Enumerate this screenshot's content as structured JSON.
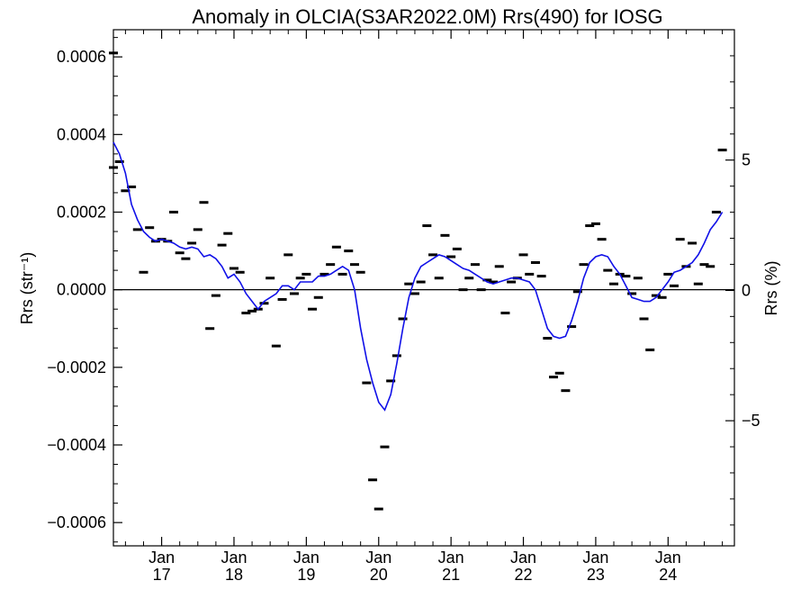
{
  "chart_data": {
    "type": "scatter",
    "title": "Anomaly in OLCIA(S3AR2022.0M) Rrs(490) for IOSG",
    "ylabel": "Rrs (str⁻¹)",
    "y2label": "Rrs (%)",
    "xlim": [
      "2016-05",
      "2024-12"
    ],
    "ylim": [
      -0.00066,
      0.00067
    ],
    "y2lim": [
      -9.8,
      10.0
    ],
    "grid": false,
    "zero_line": true,
    "x_ticks": [
      {
        "label": "Jan",
        "year": "17",
        "date": "2017-01"
      },
      {
        "label": "Jan",
        "year": "18",
        "date": "2018-01"
      },
      {
        "label": "Jan",
        "year": "19",
        "date": "2019-01"
      },
      {
        "label": "Jan",
        "year": "20",
        "date": "2020-01"
      },
      {
        "label": "Jan",
        "year": "21",
        "date": "2021-01"
      },
      {
        "label": "Jan",
        "year": "22",
        "date": "2022-01"
      },
      {
        "label": "Jan",
        "year": "23",
        "date": "2023-01"
      },
      {
        "label": "Jan",
        "year": "24",
        "date": "2024-01"
      }
    ],
    "y_ticks": [
      {
        "label": "0.0006",
        "value": 0.0006
      },
      {
        "label": "0.0004",
        "value": 0.0004
      },
      {
        "label": "0.0002",
        "value": 0.0002
      },
      {
        "label": "0.0000",
        "value": 0.0
      },
      {
        "label": "−0.0002",
        "value": -0.0002
      },
      {
        "label": "−0.0004",
        "value": -0.0004
      },
      {
        "label": "−0.0006",
        "value": -0.0006
      }
    ],
    "y2_ticks": [
      {
        "label": "5",
        "value": 5
      },
      {
        "label": "0",
        "value": 0
      },
      {
        "label": "−5",
        "value": -5
      }
    ],
    "series": [
      {
        "marker": "dash",
        "color": "#000000",
        "points": [
          [
            "2016-05",
            0.00061
          ],
          [
            "2016-05",
            0.000315
          ],
          [
            "2016-06",
            0.00033
          ],
          [
            "2016-07",
            0.000255
          ],
          [
            "2016-08",
            0.000265
          ],
          [
            "2016-09",
            0.000155
          ],
          [
            "2016-10",
            4.5e-05
          ],
          [
            "2016-11",
            0.00016
          ],
          [
            "2016-12",
            0.000125
          ],
          [
            "2017-01",
            0.00013
          ],
          [
            "2017-02",
            0.000125
          ],
          [
            "2017-03",
            0.0002
          ],
          [
            "2017-04",
            9.5e-05
          ],
          [
            "2017-05",
            8e-05
          ],
          [
            "2017-06",
            0.00012
          ],
          [
            "2017-07",
            0.000155
          ],
          [
            "2017-08",
            0.000225
          ],
          [
            "2017-09",
            -0.0001
          ],
          [
            "2017-10",
            -1.5e-05
          ],
          [
            "2017-11",
            0.000115
          ],
          [
            "2017-12",
            0.000145
          ],
          [
            "2018-01",
            5.5e-05
          ],
          [
            "2018-02",
            4.5e-05
          ],
          [
            "2018-03",
            -6e-05
          ],
          [
            "2018-04",
            -5.5e-05
          ],
          [
            "2018-05",
            -5e-05
          ],
          [
            "2018-06",
            -3.5e-05
          ],
          [
            "2018-07",
            3e-05
          ],
          [
            "2018-08",
            -0.000145
          ],
          [
            "2018-09",
            -2.5e-05
          ],
          [
            "2018-10",
            9e-05
          ],
          [
            "2018-11",
            -1e-05
          ],
          [
            "2018-12",
            3e-05
          ],
          [
            "2019-01",
            4e-05
          ],
          [
            "2019-02",
            -5e-05
          ],
          [
            "2019-03",
            -2e-05
          ],
          [
            "2019-04",
            4e-05
          ],
          [
            "2019-05",
            6.5e-05
          ],
          [
            "2019-06",
            0.00011
          ],
          [
            "2019-07",
            4e-05
          ],
          [
            "2019-08",
            0.0001
          ],
          [
            "2019-09",
            6.5e-05
          ],
          [
            "2019-10",
            4.5e-05
          ],
          [
            "2019-11",
            -0.00024
          ],
          [
            "2019-12",
            -0.00049
          ],
          [
            "2020-01",
            -0.000565
          ],
          [
            "2020-02",
            -0.000405
          ],
          [
            "2020-03",
            -0.000235
          ],
          [
            "2020-04",
            -0.00017
          ],
          [
            "2020-05",
            -7.5e-05
          ],
          [
            "2020-06",
            1.5e-05
          ],
          [
            "2020-07",
            -1e-05
          ],
          [
            "2020-08",
            2e-05
          ],
          [
            "2020-09",
            0.000165
          ],
          [
            "2020-10",
            9e-05
          ],
          [
            "2020-11",
            3e-05
          ],
          [
            "2020-12",
            0.00014
          ],
          [
            "2021-01",
            8.5e-05
          ],
          [
            "2021-02",
            0.000105
          ],
          [
            "2021-03",
            0.0
          ],
          [
            "2021-04",
            3e-05
          ],
          [
            "2021-05",
            6.5e-05
          ],
          [
            "2021-06",
            0.0
          ],
          [
            "2021-07",
            2.5e-05
          ],
          [
            "2021-08",
            2e-05
          ],
          [
            "2021-09",
            6e-05
          ],
          [
            "2021-10",
            -6e-05
          ],
          [
            "2021-11",
            2e-05
          ],
          [
            "2021-12",
            3e-05
          ],
          [
            "2022-01",
            9e-05
          ],
          [
            "2022-02",
            4e-05
          ],
          [
            "2022-03",
            7e-05
          ],
          [
            "2022-04",
            3.5e-05
          ],
          [
            "2022-05",
            -0.000125
          ],
          [
            "2022-06",
            -0.000225
          ],
          [
            "2022-07",
            -0.000215
          ],
          [
            "2022-08",
            -0.00026
          ],
          [
            "2022-09",
            -9.5e-05
          ],
          [
            "2022-10",
            -5e-06
          ],
          [
            "2022-11",
            6.5e-05
          ],
          [
            "2022-12",
            0.000165
          ],
          [
            "2023-01",
            0.00017
          ],
          [
            "2023-02",
            0.00013
          ],
          [
            "2023-03",
            5e-05
          ],
          [
            "2023-04",
            1.5e-05
          ],
          [
            "2023-05",
            4e-05
          ],
          [
            "2023-06",
            3.5e-05
          ],
          [
            "2023-07",
            -1e-05
          ],
          [
            "2023-08",
            3e-05
          ],
          [
            "2023-09",
            -7.5e-05
          ],
          [
            "2023-10",
            -0.000155
          ],
          [
            "2023-11",
            -1.5e-05
          ],
          [
            "2023-12",
            -2e-05
          ],
          [
            "2024-01",
            4e-05
          ],
          [
            "2024-02",
            1e-05
          ],
          [
            "2024-03",
            0.00013
          ],
          [
            "2024-04",
            6e-05
          ],
          [
            "2024-05",
            0.00012
          ],
          [
            "2024-06",
            1.5e-05
          ],
          [
            "2024-07",
            6.5e-05
          ],
          [
            "2024-08",
            6e-05
          ],
          [
            "2024-09",
            0.0002
          ],
          [
            "2024-10",
            0.00036
          ]
        ]
      },
      {
        "marker": "line",
        "color": "#1010e8",
        "points": [
          [
            "2016-05",
            0.00038
          ],
          [
            "2016-06",
            0.00035
          ],
          [
            "2016-07",
            0.0003
          ],
          [
            "2016-08",
            0.00022
          ],
          [
            "2016-09",
            0.00018
          ],
          [
            "2016-10",
            0.00015
          ],
          [
            "2016-11",
            0.000135
          ],
          [
            "2016-12",
            0.000125
          ],
          [
            "2017-01",
            0.00013
          ],
          [
            "2017-02",
            0.000125
          ],
          [
            "2017-03",
            0.00012
          ],
          [
            "2017-04",
            0.00011
          ],
          [
            "2017-05",
            0.000105
          ],
          [
            "2017-06",
            0.00011
          ],
          [
            "2017-07",
            0.000105
          ],
          [
            "2017-08",
            8.5e-05
          ],
          [
            "2017-09",
            9e-05
          ],
          [
            "2017-10",
            8e-05
          ],
          [
            "2017-11",
            6e-05
          ],
          [
            "2017-12",
            3e-05
          ],
          [
            "2018-01",
            4e-05
          ],
          [
            "2018-02",
            2e-05
          ],
          [
            "2018-03",
            -1e-05
          ],
          [
            "2018-04",
            -3e-05
          ],
          [
            "2018-05",
            -5e-05
          ],
          [
            "2018-06",
            -3e-05
          ],
          [
            "2018-07",
            -2e-05
          ],
          [
            "2018-08",
            -1e-05
          ],
          [
            "2018-09",
            1e-05
          ],
          [
            "2018-10",
            1e-05
          ],
          [
            "2018-11",
            0.0
          ],
          [
            "2018-12",
            2e-05
          ],
          [
            "2019-01",
            2e-05
          ],
          [
            "2019-02",
            2e-05
          ],
          [
            "2019-03",
            3.5e-05
          ],
          [
            "2019-04",
            3.5e-05
          ],
          [
            "2019-05",
            4e-05
          ],
          [
            "2019-06",
            5e-05
          ],
          [
            "2019-07",
            6e-05
          ],
          [
            "2019-08",
            5e-05
          ],
          [
            "2019-09",
            0.0
          ],
          [
            "2019-10",
            -0.0001
          ],
          [
            "2019-11",
            -0.00018
          ],
          [
            "2019-12",
            -0.00024
          ],
          [
            "2020-01",
            -0.00029
          ],
          [
            "2020-02",
            -0.00031
          ],
          [
            "2020-03",
            -0.00027
          ],
          [
            "2020-04",
            -0.00019
          ],
          [
            "2020-05",
            -0.0001
          ],
          [
            "2020-06",
            -2e-05
          ],
          [
            "2020-07",
            3e-05
          ],
          [
            "2020-08",
            6e-05
          ],
          [
            "2020-09",
            7e-05
          ],
          [
            "2020-10",
            8e-05
          ],
          [
            "2020-11",
            9e-05
          ],
          [
            "2020-12",
            8.5e-05
          ],
          [
            "2021-01",
            7.5e-05
          ],
          [
            "2021-02",
            6.5e-05
          ],
          [
            "2021-03",
            5.5e-05
          ],
          [
            "2021-04",
            5e-05
          ],
          [
            "2021-05",
            4e-05
          ],
          [
            "2021-06",
            3e-05
          ],
          [
            "2021-07",
            2e-05
          ],
          [
            "2021-08",
            1.5e-05
          ],
          [
            "2021-09",
            2e-05
          ],
          [
            "2021-10",
            2.5e-05
          ],
          [
            "2021-11",
            3e-05
          ],
          [
            "2021-12",
            3e-05
          ],
          [
            "2022-01",
            2.5e-05
          ],
          [
            "2022-02",
            2e-05
          ],
          [
            "2022-03",
            0.0
          ],
          [
            "2022-04",
            -5e-05
          ],
          [
            "2022-05",
            -0.0001
          ],
          [
            "2022-06",
            -0.00012
          ],
          [
            "2022-07",
            -0.000125
          ],
          [
            "2022-08",
            -0.00012
          ],
          [
            "2022-09",
            -8e-05
          ],
          [
            "2022-10",
            -3e-05
          ],
          [
            "2022-11",
            3e-05
          ],
          [
            "2022-12",
            7e-05
          ],
          [
            "2023-01",
            8.5e-05
          ],
          [
            "2023-02",
            9e-05
          ],
          [
            "2023-03",
            8.5e-05
          ],
          [
            "2023-04",
            6e-05
          ],
          [
            "2023-05",
            4e-05
          ],
          [
            "2023-06",
            1e-05
          ],
          [
            "2023-07",
            -2e-05
          ],
          [
            "2023-08",
            -2.5e-05
          ],
          [
            "2023-09",
            -3e-05
          ],
          [
            "2023-10",
            -3e-05
          ],
          [
            "2023-11",
            -2e-05
          ],
          [
            "2023-12",
            0.0
          ],
          [
            "2024-01",
            2e-05
          ],
          [
            "2024-02",
            4.5e-05
          ],
          [
            "2024-03",
            5e-05
          ],
          [
            "2024-04",
            6e-05
          ],
          [
            "2024-05",
            7e-05
          ],
          [
            "2024-06",
            9e-05
          ],
          [
            "2024-07",
            0.00012
          ],
          [
            "2024-08",
            0.000155
          ],
          [
            "2024-09",
            0.000175
          ],
          [
            "2024-10",
            0.0002
          ]
        ]
      }
    ]
  }
}
